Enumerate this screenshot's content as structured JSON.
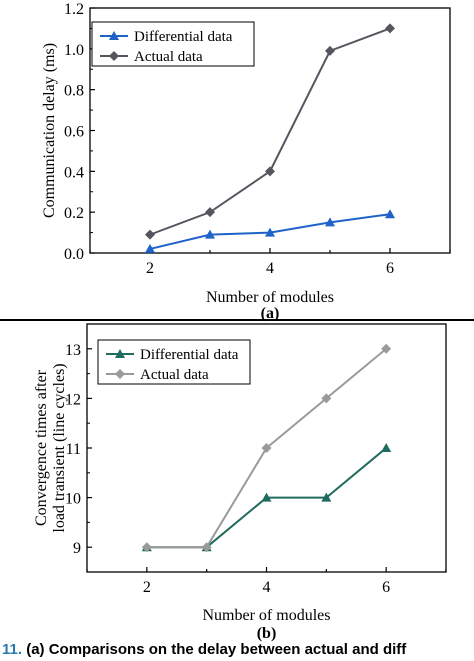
{
  "chart_data": [
    {
      "type": "line",
      "xlabel": "Number of modules",
      "ylabel": "Communication delay (ms)",
      "panel_label": "(a)",
      "x": [
        2,
        3,
        4,
        5,
        6
      ],
      "xlim": [
        1,
        7
      ],
      "ylim": [
        0,
        1.2
      ],
      "xticks": [
        "2",
        "4",
        "6"
      ],
      "yticks": [
        "0.0",
        "0.2",
        "0.4",
        "0.6",
        "0.8",
        "1.0",
        "1.2"
      ],
      "legend_position": "top-left",
      "grid": false,
      "series": [
        {
          "name": "Differential data",
          "values": [
            0.02,
            0.09,
            0.1,
            0.15,
            0.19
          ],
          "color": "#1f63c9",
          "marker": "triangle"
        },
        {
          "name": "Actual data",
          "values": [
            0.09,
            0.2,
            0.4,
            0.99,
            1.1
          ],
          "color": "#555560",
          "marker": "diamond"
        }
      ]
    },
    {
      "type": "line",
      "xlabel": "Number of modules",
      "ylabel": "Convergence times after load transient (line cycles)",
      "ylabel_lines": [
        "Convergence times after",
        "load transient (line cycles)"
      ],
      "panel_label": "(b)",
      "x": [
        2,
        3,
        4,
        5,
        6
      ],
      "xlim": [
        1,
        7
      ],
      "ylim": [
        8.5,
        13.5
      ],
      "xticks": [
        "2",
        "4",
        "6"
      ],
      "yticks": [
        "9",
        "10",
        "11",
        "12",
        "13"
      ],
      "legend_position": "top-left",
      "grid": false,
      "series": [
        {
          "name": "Differential data",
          "values": [
            9,
            9,
            10,
            10,
            11
          ],
          "color": "#1f6b5e",
          "marker": "triangle"
        },
        {
          "name": "Actual data",
          "values": [
            9,
            9,
            11,
            12,
            13
          ],
          "color": "#9a9a9a",
          "marker": "diamond"
        }
      ]
    }
  ],
  "caption": {
    "number": "11.",
    "text": "(a) Comparisons on the delay between actual and diff"
  }
}
